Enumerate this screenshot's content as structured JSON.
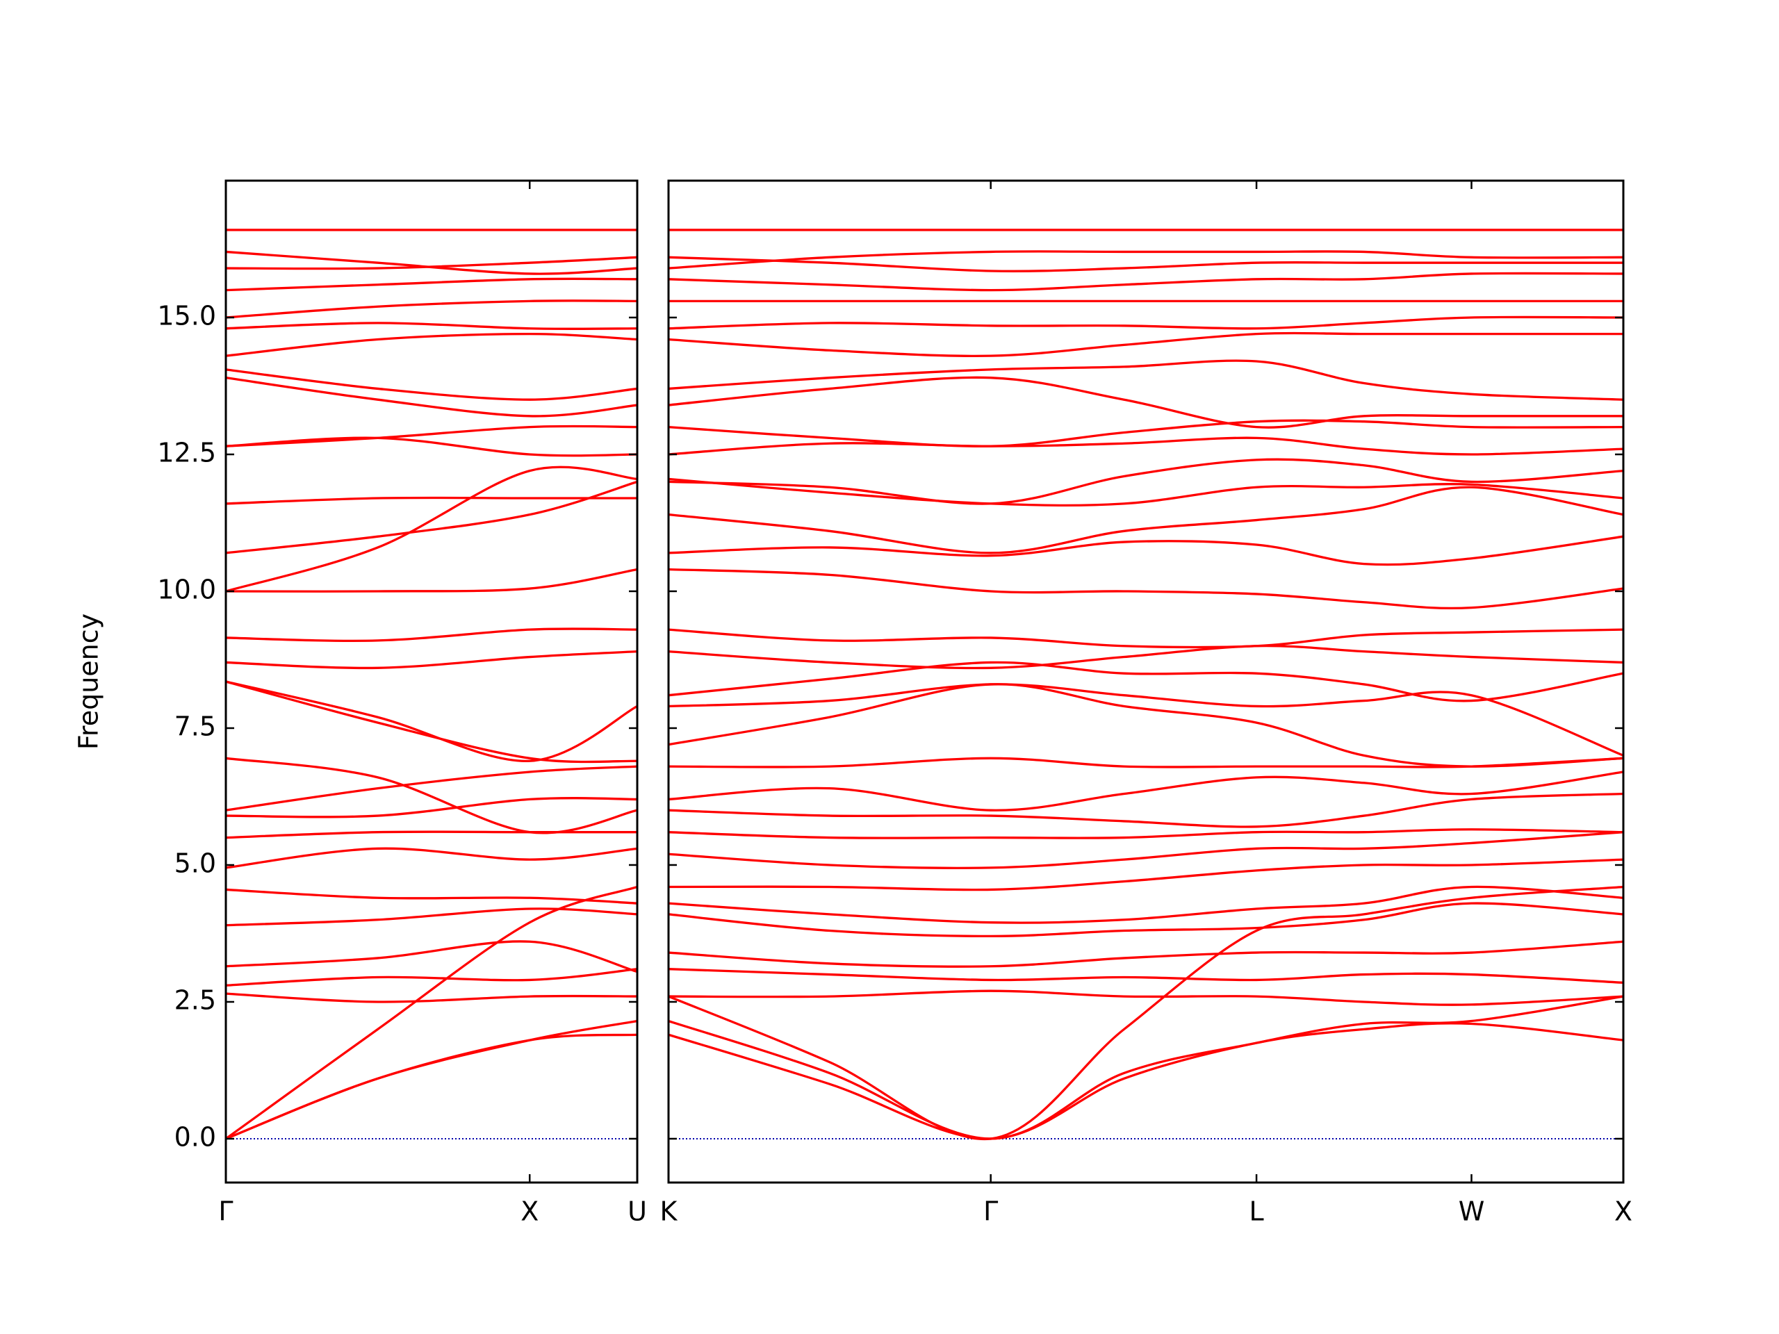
{
  "chart_data": [
    {
      "type": "line",
      "ylabel": "Frequency",
      "color": "#ff0000",
      "ylim": [
        -0.8,
        17.5
      ],
      "yticks": [
        {
          "value": 0,
          "label": "0.0"
        },
        2.5,
        {
          "value": 5,
          "label": "5.0"
        },
        7.5,
        {
          "value": 10,
          "label": "10.0"
        },
        12.5,
        {
          "value": 15,
          "label": "15.0"
        }
      ],
      "reference_line": {
        "value": 0,
        "color": "#0000aa",
        "style": "dotted"
      },
      "xlim": [
        0,
        1.354
      ],
      "xticks": [
        {
          "value": 0,
          "label": "Γ"
        },
        {
          "value": 1.0,
          "label": "X"
        },
        {
          "value": 1.354,
          "label": "U"
        }
      ],
      "x": [
        0,
        0.5,
        1.0,
        1.354
      ],
      "series": [
        {
          "values": [
            0,
            1.1,
            1.8,
            2.15
          ]
        },
        {
          "values": [
            0,
            1.1,
            1.8,
            1.9
          ]
        },
        {
          "values": [
            0,
            2.0,
            3.95,
            4.6
          ]
        },
        {
          "values": [
            2.65,
            2.5,
            2.6,
            2.6
          ]
        },
        {
          "values": [
            2.8,
            2.95,
            2.9,
            3.1
          ]
        },
        {
          "values": [
            3.15,
            3.3,
            3.6,
            3.05
          ]
        },
        {
          "values": [
            3.9,
            4.0,
            4.2,
            4.1
          ]
        },
        {
          "values": [
            4.55,
            4.4,
            4.4,
            4.3
          ]
        },
        {
          "values": [
            4.95,
            5.3,
            5.1,
            5.3
          ]
        },
        {
          "values": [
            5.5,
            5.6,
            5.6,
            5.6
          ]
        },
        {
          "values": [
            5.9,
            5.9,
            6.2,
            6.2
          ]
        },
        {
          "values": [
            6.0,
            6.4,
            6.7,
            6.8
          ]
        },
        {
          "values": [
            6.95,
            6.6,
            5.6,
            6.0
          ]
        },
        {
          "values": [
            8.35,
            7.6,
            6.95,
            6.9
          ]
        },
        {
          "values": [
            8.35,
            7.7,
            6.9,
            7.9
          ]
        },
        {
          "values": [
            8.7,
            8.6,
            8.8,
            8.9
          ]
        },
        {
          "values": [
            9.15,
            9.1,
            9.3,
            9.3
          ]
        },
        {
          "values": [
            10.0,
            10.0,
            10.05,
            10.4
          ]
        },
        {
          "values": [
            10.0,
            10.8,
            12.2,
            12.05
          ]
        },
        {
          "values": [
            10.7,
            11.0,
            11.4,
            12.0
          ]
        },
        {
          "values": [
            11.6,
            11.7,
            11.7,
            11.7
          ]
        },
        {
          "values": [
            12.65,
            12.8,
            13.0,
            13.0
          ]
        },
        {
          "values": [
            12.65,
            12.8,
            12.5,
            12.5
          ]
        },
        {
          "values": [
            13.9,
            13.5,
            13.2,
            13.4
          ]
        },
        {
          "values": [
            14.05,
            13.7,
            13.5,
            13.7
          ]
        },
        {
          "values": [
            14.3,
            14.6,
            14.7,
            14.6
          ]
        },
        {
          "values": [
            14.8,
            14.9,
            14.8,
            14.8
          ]
        },
        {
          "values": [
            15.0,
            15.2,
            15.3,
            15.3
          ]
        },
        {
          "values": [
            15.5,
            15.6,
            15.7,
            15.7
          ]
        },
        {
          "values": [
            15.9,
            15.9,
            16.0,
            16.1
          ]
        },
        {
          "values": [
            16.2,
            16.0,
            15.8,
            15.9
          ]
        },
        {
          "values": [
            16.6,
            16.6,
            16.6,
            16.6
          ]
        }
      ]
    },
    {
      "type": "line",
      "color": "#ff0000",
      "ylim": [
        -0.8,
        17.5
      ],
      "yticks": [
        0,
        2.5,
        5,
        7.5,
        10,
        12.5,
        15
      ],
      "reference_line": {
        "value": 0,
        "color": "#0000aa",
        "style": "dotted"
      },
      "xlim": [
        0,
        3.144
      ],
      "xticks": [
        {
          "value": 0,
          "label": "K"
        },
        {
          "value": 1.061,
          "label": "Γ"
        },
        {
          "value": 1.936,
          "label": "L"
        },
        {
          "value": 2.644,
          "label": "W"
        },
        {
          "value": 3.144,
          "label": "X"
        }
      ],
      "x": [
        0,
        0.53,
        1.061,
        1.5,
        1.936,
        2.29,
        2.644,
        3.144
      ],
      "series": [
        {
          "values": [
            1.9,
            1.0,
            0,
            1.1,
            1.75,
            2.0,
            2.1,
            1.8
          ]
        },
        {
          "values": [
            2.15,
            1.2,
            0,
            1.2,
            1.75,
            2.1,
            2.15,
            2.6
          ]
        },
        {
          "values": [
            2.6,
            1.4,
            0,
            2.0,
            3.8,
            4.1,
            4.4,
            4.6
          ]
        },
        {
          "values": [
            2.6,
            2.6,
            2.7,
            2.6,
            2.6,
            2.5,
            2.45,
            2.6
          ]
        },
        {
          "values": [
            3.1,
            3.0,
            2.9,
            2.95,
            2.9,
            3.0,
            3.0,
            2.85
          ]
        },
        {
          "values": [
            3.4,
            3.2,
            3.15,
            3.3,
            3.4,
            3.4,
            3.4,
            3.6
          ]
        },
        {
          "values": [
            4.1,
            3.8,
            3.7,
            3.8,
            3.85,
            4.0,
            4.3,
            4.1
          ]
        },
        {
          "values": [
            4.3,
            4.1,
            3.95,
            4.0,
            4.2,
            4.3,
            4.6,
            4.4
          ]
        },
        {
          "values": [
            4.6,
            4.6,
            4.55,
            4.7,
            4.9,
            5.0,
            5.0,
            5.1
          ]
        },
        {
          "values": [
            5.2,
            5.0,
            4.95,
            5.1,
            5.3,
            5.3,
            5.4,
            5.6
          ]
        },
        {
          "values": [
            5.6,
            5.5,
            5.5,
            5.5,
            5.6,
            5.6,
            5.65,
            5.6
          ]
        },
        {
          "values": [
            6.0,
            5.9,
            5.9,
            5.8,
            5.7,
            5.9,
            6.2,
            6.3
          ]
        },
        {
          "values": [
            6.2,
            6.4,
            6.0,
            6.3,
            6.6,
            6.5,
            6.3,
            6.7
          ]
        },
        {
          "values": [
            6.8,
            6.8,
            6.95,
            6.8,
            6.8,
            6.8,
            6.8,
            6.95
          ]
        },
        {
          "values": [
            7.2,
            7.7,
            8.3,
            7.9,
            7.6,
            7.0,
            6.8,
            6.95
          ]
        },
        {
          "values": [
            7.9,
            8.0,
            8.3,
            8.1,
            7.9,
            8.0,
            8.1,
            7.0
          ]
        },
        {
          "values": [
            8.1,
            8.4,
            8.7,
            8.5,
            8.5,
            8.3,
            8.0,
            8.5
          ]
        },
        {
          "values": [
            8.9,
            8.7,
            8.6,
            8.8,
            9.0,
            8.9,
            8.8,
            8.7
          ]
        },
        {
          "values": [
            9.3,
            9.1,
            9.15,
            9.0,
            9.0,
            9.2,
            9.25,
            9.3
          ]
        },
        {
          "values": [
            10.4,
            10.3,
            10.0,
            10.0,
            9.95,
            9.8,
            9.7,
            10.05
          ]
        },
        {
          "values": [
            10.7,
            10.8,
            10.65,
            10.9,
            10.85,
            10.5,
            10.6,
            11.0
          ]
        },
        {
          "values": [
            11.4,
            11.1,
            10.7,
            11.1,
            11.3,
            11.5,
            11.9,
            11.4
          ]
        },
        {
          "values": [
            12.05,
            11.8,
            11.6,
            11.6,
            11.9,
            11.9,
            11.95,
            11.7
          ]
        },
        {
          "values": [
            12.0,
            11.9,
            11.6,
            12.1,
            12.4,
            12.3,
            12.0,
            12.2
          ]
        },
        {
          "values": [
            12.5,
            12.7,
            12.65,
            12.7,
            12.8,
            12.6,
            12.5,
            12.6
          ]
        },
        {
          "values": [
            13.0,
            12.8,
            12.65,
            12.9,
            13.1,
            13.1,
            13.0,
            13.0
          ]
        },
        {
          "values": [
            13.4,
            13.7,
            13.9,
            13.5,
            13.0,
            13.2,
            13.2,
            13.2
          ]
        },
        {
          "values": [
            13.7,
            13.9,
            14.05,
            14.1,
            14.2,
            13.8,
            13.6,
            13.5
          ]
        },
        {
          "values": [
            14.6,
            14.4,
            14.3,
            14.5,
            14.7,
            14.7,
            14.7,
            14.7
          ]
        },
        {
          "values": [
            14.8,
            14.9,
            14.85,
            14.85,
            14.8,
            14.9,
            15.0,
            15.0
          ]
        },
        {
          "values": [
            15.3,
            15.3,
            15.3,
            15.3,
            15.3,
            15.3,
            15.3,
            15.3
          ]
        },
        {
          "values": [
            15.7,
            15.6,
            15.5,
            15.6,
            15.7,
            15.7,
            15.8,
            15.8
          ]
        },
        {
          "values": [
            16.1,
            16.0,
            15.85,
            15.9,
            16.0,
            16.0,
            16.0,
            16.0
          ]
        },
        {
          "values": [
            15.9,
            16.1,
            16.2,
            16.2,
            16.2,
            16.2,
            16.1,
            16.1
          ]
        },
        {
          "values": [
            16.6,
            16.6,
            16.6,
            16.6,
            16.6,
            16.6,
            16.6,
            16.6
          ]
        }
      ]
    }
  ]
}
